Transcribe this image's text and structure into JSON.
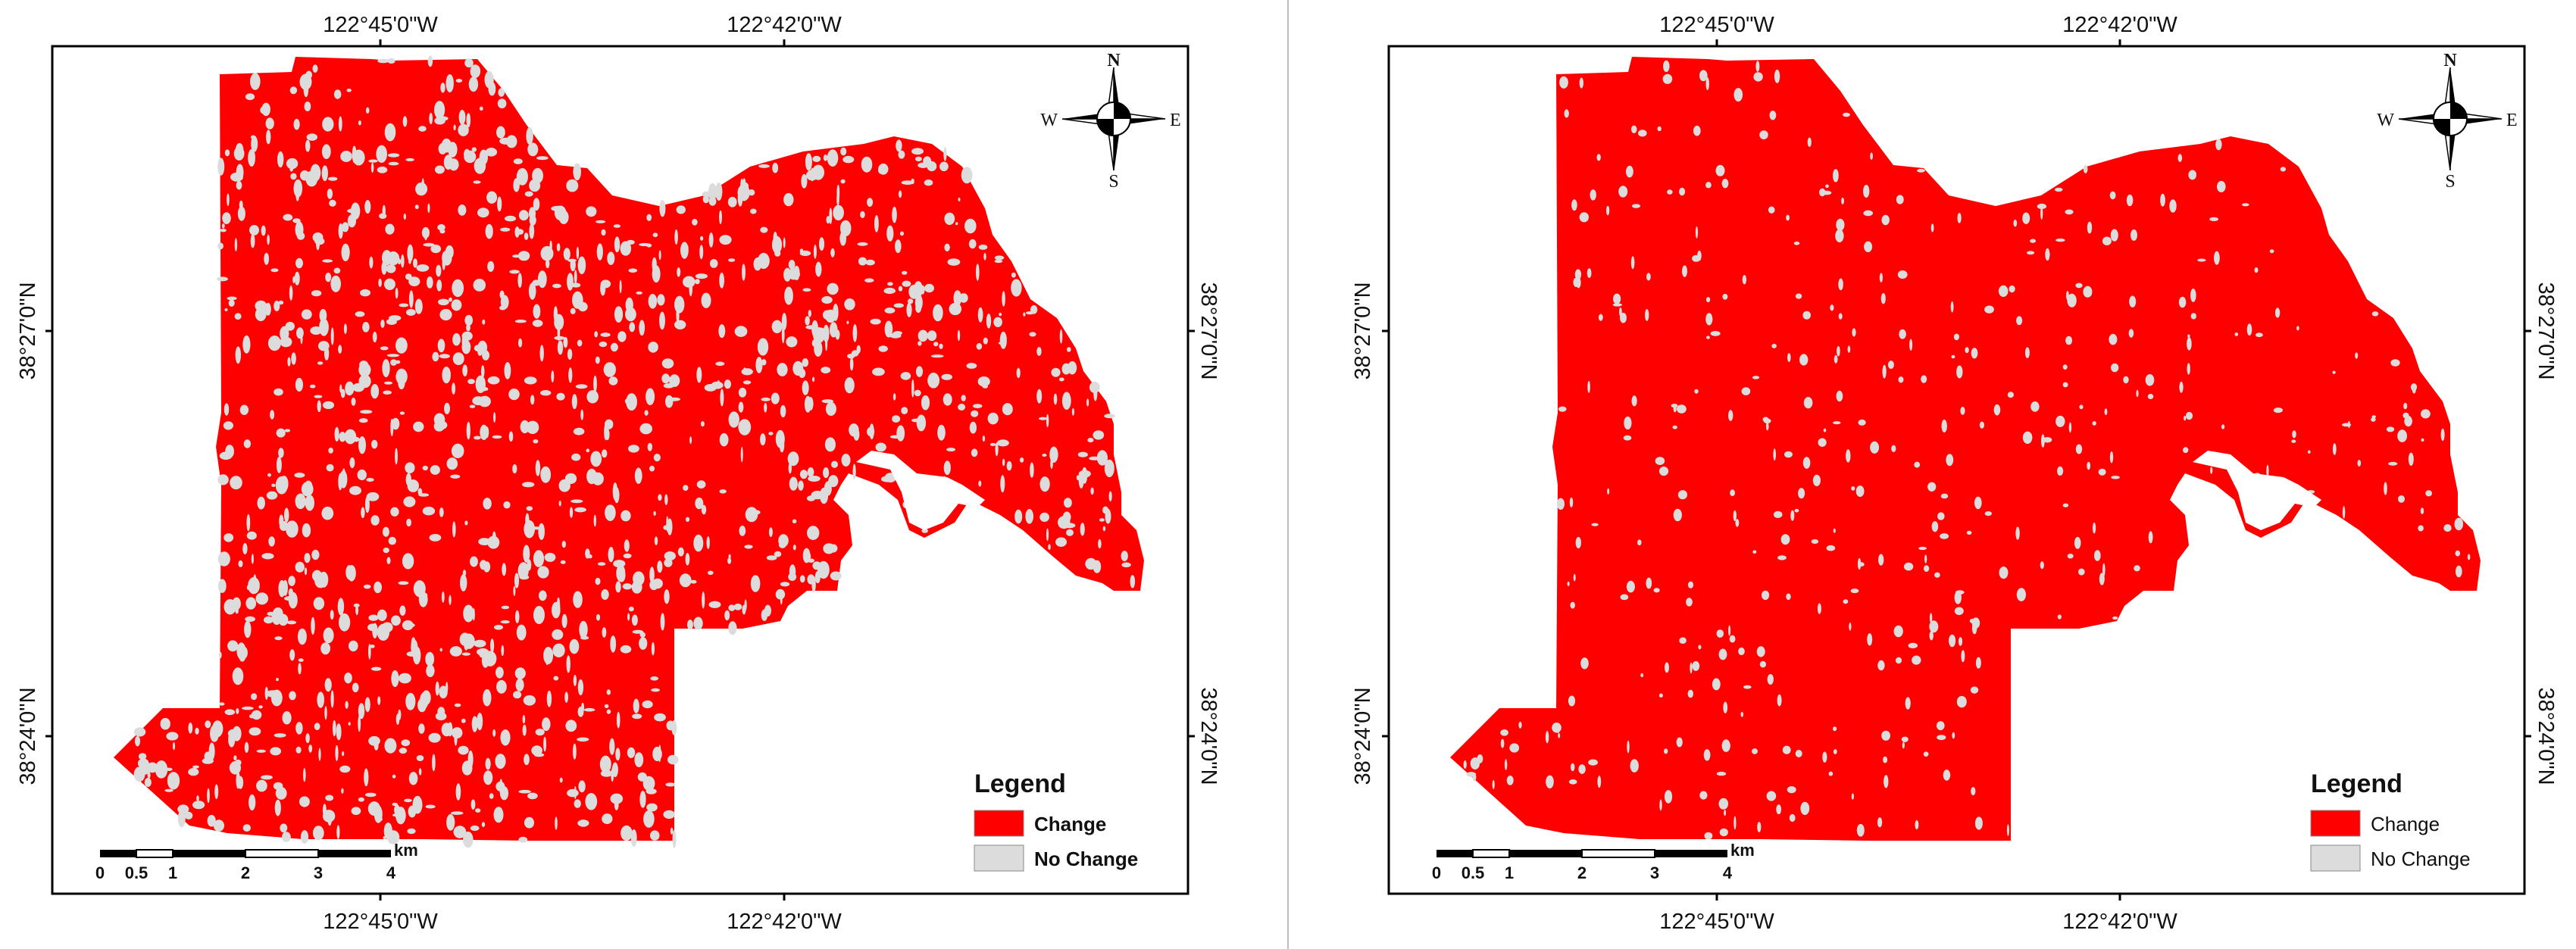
{
  "colors": {
    "change": "#ff0000",
    "no_change": "#dcdcdc",
    "frame": "#000000",
    "divider": "#bdbdbd"
  },
  "panels": [
    {
      "lon_labels": [
        "122°45'0\"W",
        "122°42'0\"W"
      ],
      "lat_labels": [
        "38°27'0\"N",
        "38°24'0\"N"
      ],
      "north_arrow": {
        "n": "N",
        "s": "S",
        "e": "E",
        "w": "W"
      },
      "legend": {
        "title": "Legend",
        "items": [
          {
            "label": "Change",
            "color": "#ff0000"
          },
          {
            "label": "No Change",
            "color": "#dcdcdc"
          }
        ]
      },
      "scale_bar": {
        "unit": "km",
        "ticks": [
          "0",
          "0.5",
          "1",
          "2",
          "3",
          "4"
        ]
      },
      "no_change_density": "high"
    },
    {
      "lon_labels": [
        "122°45'0\"W",
        "122°42'0\"W"
      ],
      "lat_labels": [
        "38°27'0\"N",
        "38°24'0\"N"
      ],
      "north_arrow": {
        "n": "N",
        "s": "S",
        "e": "E",
        "w": "W"
      },
      "legend": {
        "title": "Legend",
        "items": [
          {
            "label": "Change",
            "color": "#ff0000"
          },
          {
            "label": "No Change",
            "color": "#dcdcdc"
          }
        ]
      },
      "scale_bar": {
        "unit": "km",
        "ticks": [
          "0",
          "0.5",
          "1",
          "2",
          "3",
          "4"
        ]
      },
      "no_change_density": "low"
    }
  ]
}
